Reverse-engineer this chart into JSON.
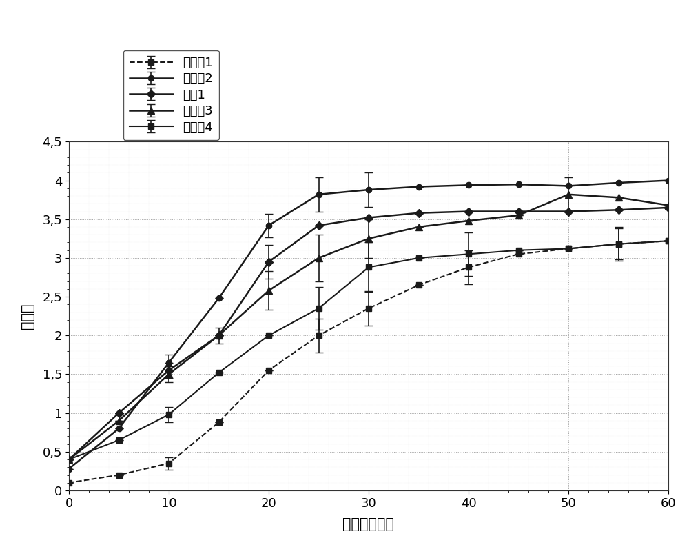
{
  "title": "",
  "xlabel": "时间（分钟）",
  "ylabel": "吸光度",
  "xlim": [
    0,
    60
  ],
  "ylim": [
    0,
    4.5
  ],
  "xticks": [
    0,
    10,
    20,
    30,
    40,
    50,
    60
  ],
  "yticks": [
    0,
    0.5,
    1.0,
    1.5,
    2.0,
    2.5,
    3.0,
    3.5,
    4.0,
    4.5
  ],
  "ytick_labels": [
    "0",
    "0,5",
    "1",
    "1,5",
    "2",
    "2,5",
    "3",
    "3,5",
    "4",
    "4,5"
  ],
  "series": [
    {
      "label": "实施例1",
      "x": [
        0,
        5,
        10,
        15,
        20,
        25,
        30,
        35,
        40,
        45,
        50,
        55,
        60
      ],
      "y": [
        0.1,
        0.2,
        0.35,
        0.88,
        1.55,
        2.0,
        2.35,
        2.65,
        2.88,
        3.05,
        3.12,
        3.18,
        3.22
      ],
      "yerr": [
        0.0,
        0.0,
        0.08,
        0.0,
        0.0,
        0.22,
        0.22,
        0.0,
        0.22,
        0.0,
        0.0,
        0.2,
        0.0
      ],
      "color": "#1a1a1a",
      "linestyle": "--",
      "marker": "s",
      "markersize": 6,
      "linewidth": 1.5
    },
    {
      "label": "实施例2",
      "x": [
        0,
        5,
        10,
        15,
        20,
        25,
        30,
        35,
        40,
        45,
        50,
        55,
        60
      ],
      "y": [
        0.28,
        0.8,
        1.65,
        2.48,
        3.42,
        3.82,
        3.88,
        3.92,
        3.94,
        3.95,
        3.93,
        3.97,
        4.0
      ],
      "yerr": [
        0.0,
        0.0,
        0.1,
        0.0,
        0.15,
        0.22,
        0.22,
        0.0,
        0.0,
        0.0,
        0.0,
        0.0,
        0.0
      ],
      "color": "#1a1a1a",
      "linestyle": "-",
      "marker": "o",
      "markersize": 6,
      "linewidth": 1.8
    },
    {
      "label": "参比1",
      "x": [
        0,
        5,
        10,
        15,
        20,
        25,
        30,
        35,
        40,
        45,
        50,
        55,
        60
      ],
      "y": [
        0.4,
        1.0,
        1.55,
        2.0,
        2.95,
        3.42,
        3.52,
        3.58,
        3.6,
        3.6,
        3.6,
        3.62,
        3.65
      ],
      "yerr": [
        0.0,
        0.0,
        0.1,
        0.0,
        0.22,
        0.0,
        0.0,
        0.0,
        0.0,
        0.0,
        0.0,
        0.0,
        0.0
      ],
      "color": "#1a1a1a",
      "linestyle": "-",
      "marker": "D",
      "markersize": 6,
      "linewidth": 1.8
    },
    {
      "label": "实施例3",
      "x": [
        0,
        5,
        10,
        15,
        20,
        25,
        30,
        35,
        40,
        45,
        50,
        55,
        60
      ],
      "y": [
        0.4,
        0.9,
        1.5,
        2.0,
        2.58,
        3.0,
        3.25,
        3.4,
        3.48,
        3.55,
        3.82,
        3.78,
        3.68
      ],
      "yerr": [
        0.0,
        0.0,
        0.1,
        0.1,
        0.25,
        0.3,
        0.25,
        0.0,
        0.0,
        0.0,
        0.22,
        0.0,
        0.0
      ],
      "color": "#1a1a1a",
      "linestyle": "-",
      "marker": "^",
      "markersize": 7,
      "linewidth": 1.8
    },
    {
      "label": "实施例4",
      "x": [
        0,
        5,
        10,
        15,
        20,
        25,
        30,
        35,
        40,
        45,
        50,
        55,
        60
      ],
      "y": [
        0.4,
        0.65,
        0.98,
        1.52,
        2.0,
        2.35,
        2.88,
        3.0,
        3.05,
        3.1,
        3.12,
        3.18,
        3.22
      ],
      "yerr": [
        0.0,
        0.0,
        0.1,
        0.0,
        0.0,
        0.28,
        0.32,
        0.0,
        0.28,
        0.0,
        0.0,
        0.22,
        0.0
      ],
      "color": "#1a1a1a",
      "linestyle": "-",
      "marker": "s",
      "markersize": 6,
      "linewidth": 1.5
    }
  ],
  "background_color": "#ffffff",
  "grid_major_color": "#999999",
  "grid_minor_color": "#cccccc"
}
